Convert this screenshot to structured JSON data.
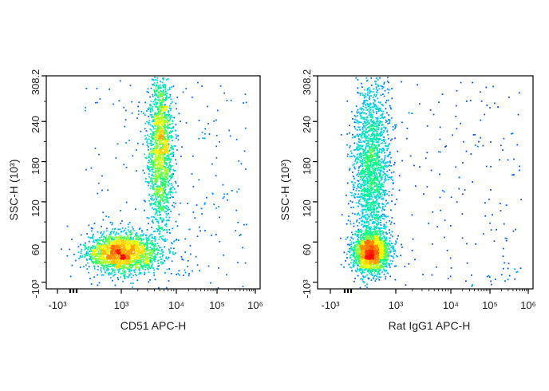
{
  "chart_data": [
    {
      "type": "scatter",
      "subtype": "flow-cytometry-density",
      "xlabel": "CD51 APC-H",
      "ylabel": "SSC-H (10³)",
      "x_scale": "biexponential",
      "xticks": [
        "-10³",
        "10³",
        "10⁴",
        "10⁵",
        "10⁶"
      ],
      "yticks": [
        "-10³",
        "60",
        "120",
        "180",
        "240",
        "308.2"
      ],
      "ylim": [
        -10,
        308.2
      ],
      "grid": false,
      "populations": [
        {
          "x_center_log": 3.0,
          "y_center": 45,
          "x_spread_log": 0.35,
          "y_spread": 15,
          "weight": 0.55
        },
        {
          "x_center_log": 3.7,
          "y_center": 200,
          "x_spread_log": 0.12,
          "y_spread": 60,
          "weight": 0.45
        }
      ],
      "color_scale": [
        "#0000ff",
        "#00c8ff",
        "#00ff80",
        "#ffff00",
        "#ff8000",
        "#ff0000"
      ]
    },
    {
      "type": "scatter",
      "subtype": "flow-cytometry-density",
      "xlabel": "Rat IgG1 APC-H",
      "ylabel": "SSC-H (10³)",
      "x_scale": "biexponential",
      "xticks": [
        "-10³",
        "10³",
        "10⁴",
        "10⁵",
        "10⁶"
      ],
      "yticks": [
        "-10³",
        "60",
        "120",
        "180",
        "240",
        "308.2"
      ],
      "ylim": [
        -10,
        308.2
      ],
      "grid": false,
      "populations": [
        {
          "x_center_log": 2.5,
          "y_center": 45,
          "x_spread_log": 0.18,
          "y_spread": 15,
          "weight": 0.5
        },
        {
          "x_center_log": 2.5,
          "y_center": 175,
          "x_spread_log": 0.18,
          "y_spread": 70,
          "weight": 0.5
        }
      ],
      "color_scale": [
        "#0000ff",
        "#00c8ff",
        "#00ff80",
        "#ffff00",
        "#ff8000",
        "#ff0000"
      ]
    }
  ]
}
